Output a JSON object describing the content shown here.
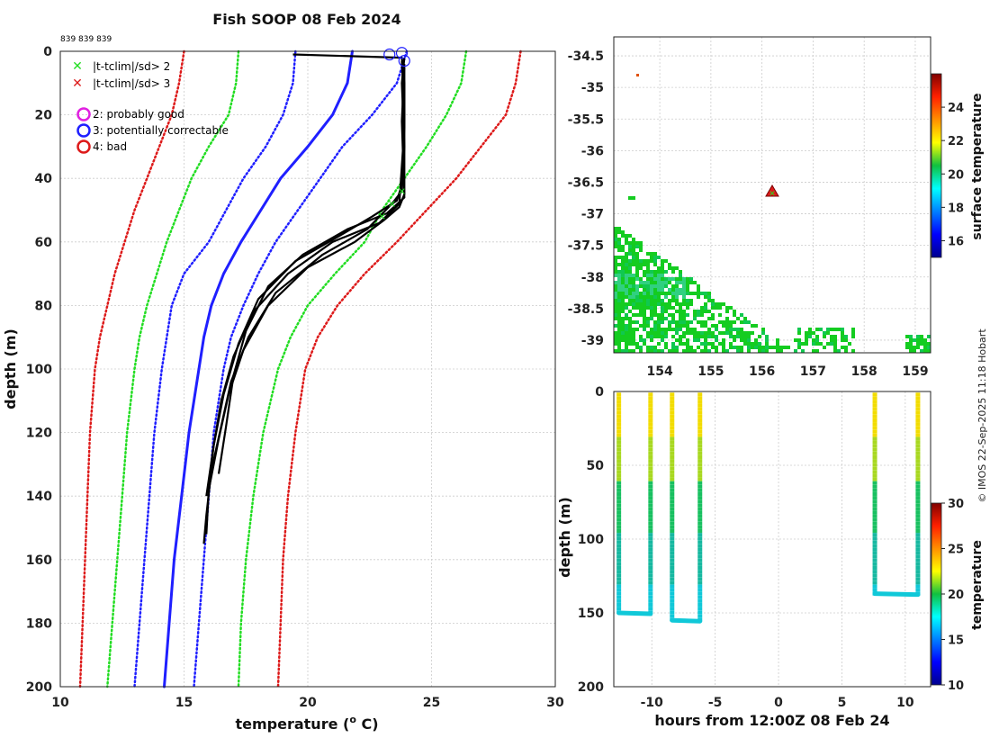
{
  "title": "Fish SOOP 08 Feb 2024",
  "profile_ids": "839 839 839",
  "copyright": "© IMOS 22-Sep-2025 11:18 Hobart",
  "legend": {
    "qc_green": "|t-tclim|/sd> 2",
    "qc_red": "|t-tclim|/sd> 3",
    "flag2": "2: probably good",
    "flag3": "3: potentially correctable",
    "flag4": "4: bad"
  },
  "colors": {
    "black": "#000000",
    "blue": "#1f1fff",
    "green": "#22dd22",
    "red": "#dd1a1a",
    "grid": "#cccccc"
  },
  "chart_data": [
    {
      "type": "line",
      "name": "profiles",
      "title": "Fish SOOP 08 Feb 2024",
      "xlabel": "temperature (",
      "xlabel_sup": "o",
      "xlabel_end": " C)",
      "ylabel": "depth (m)",
      "xlim": [
        10,
        30
      ],
      "ylim": [
        200,
        0
      ],
      "xticks": [
        "10",
        "15",
        "20",
        "25",
        "30"
      ],
      "yticks": [
        "0",
        "20",
        "40",
        "60",
        "80",
        "100",
        "120",
        "140",
        "160",
        "180",
        "200"
      ],
      "climatology": {
        "depth": [
          0,
          10,
          20,
          30,
          40,
          50,
          60,
          70,
          80,
          90,
          100,
          120,
          140,
          160,
          180,
          200
        ],
        "mean": [
          21.8,
          21.6,
          21.0,
          20.0,
          18.9,
          18.1,
          17.3,
          16.6,
          16.1,
          15.8,
          15.6,
          15.2,
          14.9,
          14.6,
          14.4,
          14.2
        ],
        "sd2_lo": [
          17.2,
          17.1,
          16.8,
          16.0,
          15.3,
          14.8,
          14.3,
          13.9,
          13.5,
          13.2,
          13.0,
          12.7,
          12.5,
          12.3,
          12.1,
          11.9
        ],
        "sd2_hi": [
          26.4,
          26.2,
          25.6,
          24.8,
          23.9,
          23.0,
          22.3,
          21.1,
          20.0,
          19.3,
          18.8,
          18.2,
          17.8,
          17.5,
          17.3,
          17.2
        ],
        "sd1_lo": [
          19.5,
          19.4,
          19.0,
          18.3,
          17.4,
          16.7,
          16.0,
          15.0,
          14.5,
          14.3,
          14.1,
          13.8,
          13.6,
          13.4,
          13.2,
          13.0
        ],
        "sd1_hi": [
          24.0,
          23.6,
          22.6,
          21.4,
          20.5,
          19.6,
          18.7,
          18.0,
          17.4,
          16.9,
          16.6,
          16.2,
          16.0,
          15.8,
          15.6,
          15.4
        ],
        "sd3_lo": [
          15.0,
          14.8,
          14.5,
          14.0,
          13.5,
          13.0,
          12.6,
          12.2,
          11.9,
          11.6,
          11.4,
          11.2,
          11.1,
          11.0,
          10.9,
          10.8
        ],
        "sd3_hi": [
          28.6,
          28.4,
          28.0,
          27.0,
          26.0,
          24.8,
          23.6,
          22.3,
          21.2,
          20.4,
          19.9,
          19.5,
          19.2,
          19.0,
          18.9,
          18.8
        ]
      },
      "profiles": [
        {
          "t": [
            19.4,
            23.8,
            23.9,
            23.9,
            23.8,
            23.4,
            22.4,
            20.6,
            18.7,
            17.6,
            16.9,
            16.5,
            16.1,
            15.9,
            15.8
          ],
          "d": [
            1,
            2,
            10,
            30,
            44,
            48,
            56,
            64,
            76,
            90,
            104,
            118,
            132,
            146,
            155
          ]
        },
        {
          "t": [
            23.9,
            23.8,
            23.9,
            23.9,
            23.7,
            23.1,
            21.9,
            20.0,
            18.4,
            17.4,
            16.8,
            16.4,
            16.0,
            15.9
          ],
          "d": [
            2,
            10,
            30,
            45,
            49,
            53,
            60,
            68,
            80,
            94,
            108,
            122,
            138,
            152
          ]
        },
        {
          "t": [
            23.8,
            23.9,
            23.8,
            23.6,
            22.6,
            21.3,
            19.5,
            18.0,
            17.2,
            16.6,
            16.2,
            15.9
          ],
          "d": [
            3,
            20,
            42,
            47,
            52,
            58,
            66,
            78,
            92,
            108,
            124,
            140
          ]
        },
        {
          "t": [
            23.9,
            23.8,
            23.9,
            23.2,
            21.6,
            19.8,
            18.4,
            17.5,
            17.0,
            16.7,
            16.4
          ],
          "d": [
            4,
            22,
            46,
            51,
            56,
            64,
            74,
            88,
            102,
            118,
            133
          ]
        },
        {
          "t": [
            23.9,
            23.9,
            23.7,
            22.9,
            21.0,
            19.2,
            17.8,
            17.0,
            16.5,
            16.2,
            16.0
          ],
          "d": [
            5,
            24,
            48,
            54,
            60,
            70,
            82,
            96,
            110,
            124,
            137
          ]
        }
      ],
      "bad_markers": [
        {
          "t": 23.3,
          "d": 1
        },
        {
          "t": 23.8,
          "d": 0.5
        },
        {
          "t": 23.9,
          "d": 3
        }
      ],
      "green_markers": [
        {
          "t": 23.8,
          "d": 44
        },
        {
          "t": 23.4,
          "d": 48
        },
        {
          "t": 23.0,
          "d": 52
        }
      ]
    },
    {
      "type": "heatmap",
      "name": "map",
      "xlim": [
        153.1,
        159.3
      ],
      "ylim": [
        -39.2,
        -34.2
      ],
      "xticks": [
        "154",
        "155",
        "156",
        "157",
        "158",
        "159"
      ],
      "yticks": [
        "-34.5",
        "-35",
        "-35.5",
        "-36",
        "-36.5",
        "-37",
        "-37.5",
        "-38",
        "-38.5",
        "-39"
      ],
      "ship_position": {
        "lon": 156.2,
        "lat": -36.65
      },
      "colorbar_label": "surface temperature",
      "colorbar_range": [
        15,
        26
      ],
      "colorbar_ticks": [
        "16",
        "18",
        "20",
        "22",
        "24"
      ]
    },
    {
      "type": "scatter",
      "name": "time-depth",
      "xlabel": "hours from 12:00Z 08 Feb 24",
      "ylabel": "depth (m)",
      "xlim": [
        -13,
        12
      ],
      "ylim": [
        200,
        0
      ],
      "xticks": [
        "-10",
        "-5",
        "0",
        "5",
        "10"
      ],
      "yticks": [
        "0",
        "50",
        "100",
        "150",
        "200"
      ],
      "casts": [
        {
          "down_h": -12.6,
          "up_h": -10.1,
          "max_depth": 150
        },
        {
          "down_h": -8.4,
          "up_h": -6.2,
          "max_depth": 155
        },
        {
          "down_h": 7.6,
          "up_h": 11.0,
          "max_depth": 137
        }
      ],
      "colorbar_label": "temperature",
      "colorbar_range": [
        10,
        30
      ],
      "colorbar_ticks": [
        "10",
        "15",
        "20",
        "25",
        "30"
      ]
    }
  ]
}
